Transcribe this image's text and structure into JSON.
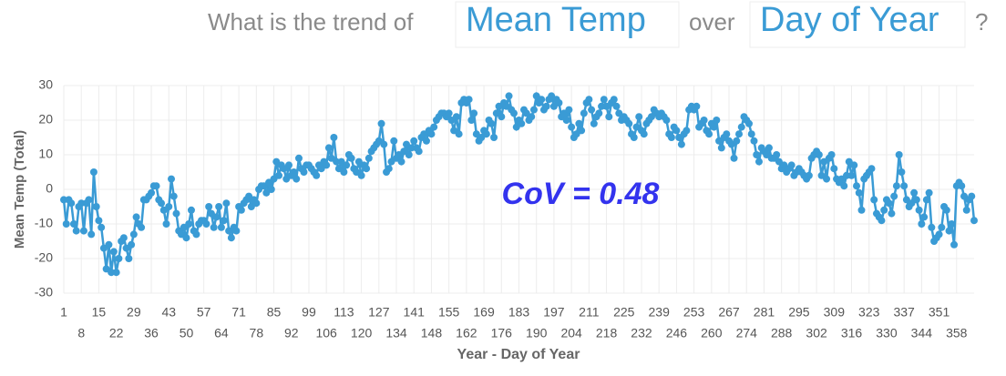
{
  "chart_data": {
    "type": "line",
    "question": {
      "prefix": "What is the trend of",
      "measure": "Mean Temp",
      "middle": "over",
      "dimension": "Day of Year",
      "suffix": "?"
    },
    "ylabel": "Mean Temp (Total)",
    "xlabel": "Year - Day of Year",
    "annotation": "CoV = 0.48",
    "x": [
      1,
      2,
      3,
      4,
      5,
      6,
      7,
      8,
      9,
      10,
      11,
      12,
      13,
      14,
      15,
      16,
      17,
      18,
      19,
      20,
      21,
      22,
      23,
      24,
      25,
      26,
      27,
      28,
      29,
      30,
      31,
      32,
      33,
      34,
      35,
      36,
      37,
      38,
      39,
      40,
      41,
      42,
      43,
      44,
      45,
      46,
      47,
      48,
      49,
      50,
      51,
      52,
      53,
      54,
      55,
      56,
      57,
      58,
      59,
      60,
      61,
      62,
      63,
      64,
      65,
      66,
      67,
      68,
      69,
      70,
      71,
      72,
      73,
      74,
      75,
      76,
      77,
      78,
      79,
      80,
      81,
      82,
      83,
      84,
      85,
      86,
      87,
      88,
      89,
      90,
      91,
      92,
      93,
      94,
      95,
      96,
      97,
      98,
      99,
      100,
      101,
      102,
      103,
      104,
      105,
      106,
      107,
      108,
      109,
      110,
      111,
      112,
      113,
      114,
      115,
      116,
      117,
      118,
      119,
      120,
      121,
      122,
      123,
      124,
      125,
      126,
      127,
      128,
      129,
      130,
      131,
      132,
      133,
      134,
      135,
      136,
      137,
      138,
      139,
      140,
      141,
      142,
      143,
      144,
      145,
      146,
      147,
      148,
      149,
      150,
      151,
      152,
      153,
      154,
      155,
      156,
      157,
      158,
      159,
      160,
      161,
      162,
      163,
      164,
      165,
      166,
      167,
      168,
      169,
      170,
      171,
      172,
      173,
      174,
      175,
      176,
      177,
      178,
      179,
      180,
      181,
      182,
      183,
      184,
      185,
      186,
      187,
      188,
      189,
      190,
      191,
      192,
      193,
      194,
      195,
      196,
      197,
      198,
      199,
      200,
      201,
      202,
      203,
      204,
      205,
      206,
      207,
      208,
      209,
      210,
      211,
      212,
      213,
      214,
      215,
      216,
      217,
      218,
      219,
      220,
      221,
      222,
      223,
      224,
      225,
      226,
      227,
      228,
      229,
      230,
      231,
      232,
      233,
      234,
      235,
      236,
      237,
      238,
      239,
      240,
      241,
      242,
      243,
      244,
      245,
      246,
      247,
      248,
      249,
      250,
      251,
      252,
      253,
      254,
      255,
      256,
      257,
      258,
      259,
      260,
      261,
      262,
      263,
      264,
      265,
      266,
      267,
      268,
      269,
      270,
      271,
      272,
      273,
      274,
      275,
      276,
      277,
      278,
      279,
      280,
      281,
      282,
      283,
      284,
      285,
      286,
      287,
      288,
      289,
      290,
      291,
      292,
      293,
      294,
      295,
      296,
      297,
      298,
      299,
      300,
      301,
      302,
      303,
      304,
      305,
      306,
      307,
      308,
      309,
      310,
      311,
      312,
      313,
      314,
      315,
      316,
      317,
      318,
      319,
      320,
      321,
      322,
      323,
      324,
      325,
      326,
      327,
      328,
      329,
      330,
      331,
      332,
      333,
      334,
      335,
      336,
      337,
      338,
      339,
      340,
      341,
      342,
      343,
      344,
      345,
      346,
      347,
      348,
      349,
      350,
      351,
      352,
      353,
      354,
      355,
      356,
      357,
      358,
      359,
      360,
      361,
      362,
      363,
      364,
      365
    ],
    "series": [
      {
        "name": "Mean Temp",
        "color": "#3a9bd5",
        "values": [
          -3,
          -10,
          -3,
          -4,
          -10,
          -12,
          -5,
          -4,
          -12,
          -4,
          -3,
          -13,
          5,
          -5,
          -9,
          -11,
          -17,
          -23,
          -16,
          -24,
          -18,
          -24,
          -20,
          -15,
          -14,
          -17,
          -20,
          -16,
          -13,
          -8,
          -10,
          -11,
          -3,
          -3,
          -2,
          -1,
          1,
          1,
          -3,
          -4,
          -6,
          -10,
          -5,
          3,
          -2,
          -7,
          -12,
          -13,
          -11,
          -14,
          -10,
          -6,
          -12,
          -13,
          -10,
          -9,
          -9,
          -10,
          -5,
          -7,
          -11,
          -8,
          -5,
          -11,
          -9,
          -4,
          -12,
          -14,
          -11,
          -12,
          -5,
          -6,
          -4,
          -3,
          -2,
          -5,
          -3,
          -4,
          0,
          1,
          1,
          -1,
          2,
          0,
          3,
          8,
          4,
          7,
          6,
          3,
          7,
          4,
          5,
          3,
          9,
          6,
          5,
          7,
          7,
          6,
          5,
          4,
          7,
          6,
          8,
          7,
          12,
          9,
          15,
          8,
          6,
          8,
          5,
          7,
          10,
          9,
          6,
          5,
          8,
          4,
          7,
          6,
          9,
          11,
          12,
          13,
          14,
          19,
          13,
          5,
          6,
          8,
          14,
          9,
          10,
          8,
          11,
          13,
          10,
          12,
          14,
          12,
          11,
          15,
          16,
          14,
          17,
          16,
          18,
          20,
          21,
          22,
          22,
          21,
          22,
          20,
          17,
          21,
          16,
          25,
          26,
          25,
          26,
          20,
          22,
          16,
          14,
          15,
          17,
          16,
          20,
          19,
          15,
          22,
          24,
          21,
          25,
          24,
          27,
          23,
          22,
          18,
          20,
          19,
          23,
          22,
          20,
          21,
          23,
          27,
          25,
          26,
          23,
          24,
          26,
          27,
          24,
          26,
          25,
          21,
          22,
          20,
          23,
          18,
          15,
          16,
          19,
          17,
          22,
          25,
          26,
          23,
          19,
          21,
          22,
          24,
          26,
          24,
          21,
          25,
          26,
          24,
          22,
          20,
          21,
          20,
          19,
          16,
          15,
          18,
          21,
          17,
          16,
          19,
          20,
          21,
          23,
          22,
          21,
          22,
          21,
          20,
          16,
          15,
          18,
          17,
          15,
          13,
          16,
          17,
          23,
          24,
          23,
          24,
          18,
          19,
          20,
          17,
          16,
          19,
          18,
          20,
          14,
          12,
          15,
          16,
          14,
          13,
          9,
          14,
          16,
          18,
          21,
          20,
          19,
          16,
          14,
          10,
          8,
          12,
          11,
          10,
          12,
          9,
          9,
          10,
          8,
          6,
          7,
          5,
          6,
          7,
          4,
          5,
          6,
          5,
          4,
          3,
          4,
          9,
          10,
          11,
          10,
          4,
          8,
          3,
          9,
          10,
          6,
          3,
          2,
          3,
          1,
          4,
          8,
          4,
          7,
          1,
          -1,
          -6,
          3,
          4,
          5,
          6,
          -3,
          -7,
          -8,
          -9,
          -6,
          -3,
          -4,
          -7,
          -2,
          1,
          10,
          5,
          1,
          -3,
          -5,
          -4,
          -1,
          -3,
          -6,
          -10,
          -8,
          -3,
          -1,
          -11,
          -15,
          -14,
          -13,
          -11,
          -5,
          -6,
          -12,
          -10,
          -16,
          1,
          2,
          1,
          -2,
          -6,
          -3,
          -2,
          -9
        ]
      }
    ],
    "xlim": [
      1,
      365
    ],
    "xticks": [
      1,
      8,
      15,
      22,
      29,
      36,
      43,
      50,
      57,
      64,
      71,
      78,
      85,
      92,
      99,
      106,
      113,
      120,
      127,
      134,
      141,
      148,
      155,
      162,
      169,
      176,
      183,
      190,
      197,
      204,
      211,
      218,
      225,
      232,
      239,
      246,
      253,
      260,
      267,
      274,
      281,
      288,
      295,
      302,
      309,
      316,
      323,
      330,
      337,
      344,
      351,
      358
    ],
    "ylim": [
      -30,
      30
    ],
    "yticks": [
      -30,
      -20,
      -10,
      0,
      10,
      20,
      30
    ],
    "grid": true
  }
}
